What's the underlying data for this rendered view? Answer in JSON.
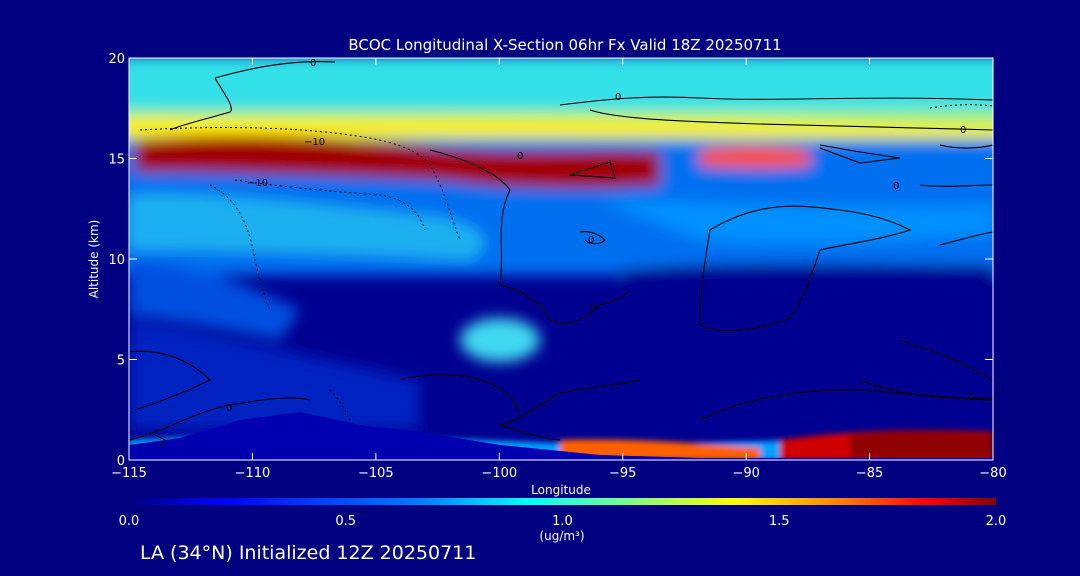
{
  "chart_data": {
    "type": "heatmap",
    "title": "BCOC Longitudinal X-Section 06hr  Fx Valid 18Z 20250711",
    "xlabel": "Longitude",
    "ylabel": "Altitude (km)",
    "xlim": [
      -115,
      -80
    ],
    "ylim": [
      0,
      20
    ],
    "x_ticks": [
      "−115",
      "−110",
      "−105",
      "−100",
      "−95",
      "−90",
      "−85",
      "−80"
    ],
    "y_ticks": [
      "0",
      "5",
      "10",
      "15",
      "20"
    ],
    "colorbar": {
      "min": 0.0,
      "max": 2.0,
      "ticks": [
        "0.0",
        "0.5",
        "1.0",
        "1.5",
        "2.0"
      ],
      "unit": "(ug/m³)"
    },
    "contour_labels": [
      "0",
      "0",
      "0",
      "0",
      "0",
      "0",
      "0",
      "0",
      "0",
      "−10",
      "−10"
    ],
    "features": {
      "upper_layer_km": [
        13,
        16
      ],
      "upper_maximum": {
        "lon_range": [
          -115,
          -95
        ],
        "alt_km": 15,
        "value": 2.0
      },
      "surface_layer_maximum": {
        "lon_range": [
          -88,
          -80
        ],
        "alt_km": 0.7,
        "value": 2.0
      }
    }
  },
  "footer": {
    "caption": "LA (34°N) Initialized 12Z 20250711"
  },
  "colors": {
    "background": "#000080",
    "colormap": [
      "#00007f",
      "#0000ff",
      "#0080ff",
      "#00ffff",
      "#80ff80",
      "#ffff00",
      "#ff8000",
      "#ff0000",
      "#800000"
    ],
    "terrain": "#0000b0"
  }
}
